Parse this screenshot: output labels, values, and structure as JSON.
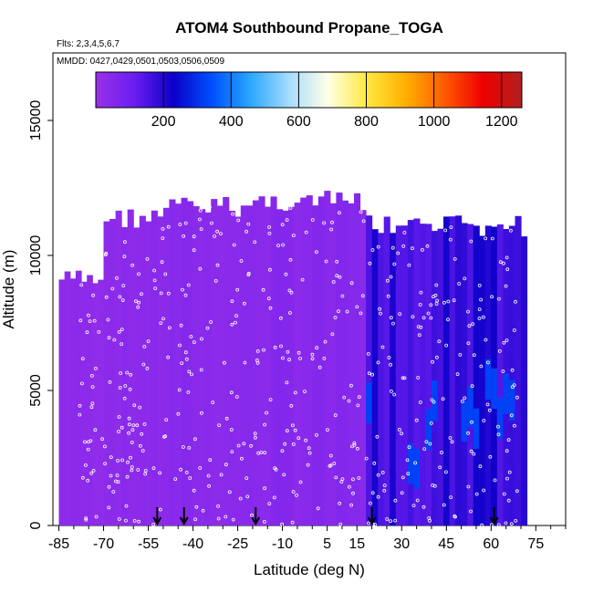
{
  "chart_data": {
    "type": "heatmap",
    "title": "ATOM4 Southbound Propane_TOGA",
    "flights_note": "Flts: 2,3,4,5,6,7",
    "dates_note": "MMDD: 0427,0429,0501,0503,0506,0509",
    "xlabel": "Latitude (deg N)",
    "ylabel": "Altitude (m)",
    "xlim": [
      -87,
      85
    ],
    "ylim": [
      0,
      17500
    ],
    "x_ticks": [
      -85,
      -70,
      -55,
      -40,
      -25,
      -10,
      5,
      15,
      30,
      45,
      60,
      75
    ],
    "y_ticks": [
      0,
      5000,
      10000,
      15000
    ],
    "colorbar": {
      "range": [
        0,
        1260
      ],
      "ticks": [
        200,
        400,
        600,
        800,
        1000,
        1200
      ],
      "colors": [
        "#9a30e8",
        "#6a1ef0",
        "#0a00c8",
        "#0050ff",
        "#2aa8ff",
        "#a8dcff",
        "#ffffe6",
        "#ffe840",
        "#ffb000",
        "#ff5a00",
        "#ee0000",
        "#b02020"
      ]
    },
    "sample_arrows_lat": [
      -52,
      -43,
      -19,
      20,
      61
    ],
    "curtain_segments": [
      {
        "lat_min": -85,
        "lat_max": -70,
        "alt_top": 9500,
        "value": 30
      },
      {
        "lat_min": -70,
        "lat_max": -50,
        "alt_top": 11800,
        "value": 35
      },
      {
        "lat_min": -50,
        "lat_max": -20,
        "alt_top": 12200,
        "value": 40
      },
      {
        "lat_min": -20,
        "lat_max": 18,
        "alt_top": 12400,
        "value": 45
      },
      {
        "lat_min": 18,
        "lat_max": 72,
        "alt_top": 11500,
        "value": 180
      }
    ]
  }
}
